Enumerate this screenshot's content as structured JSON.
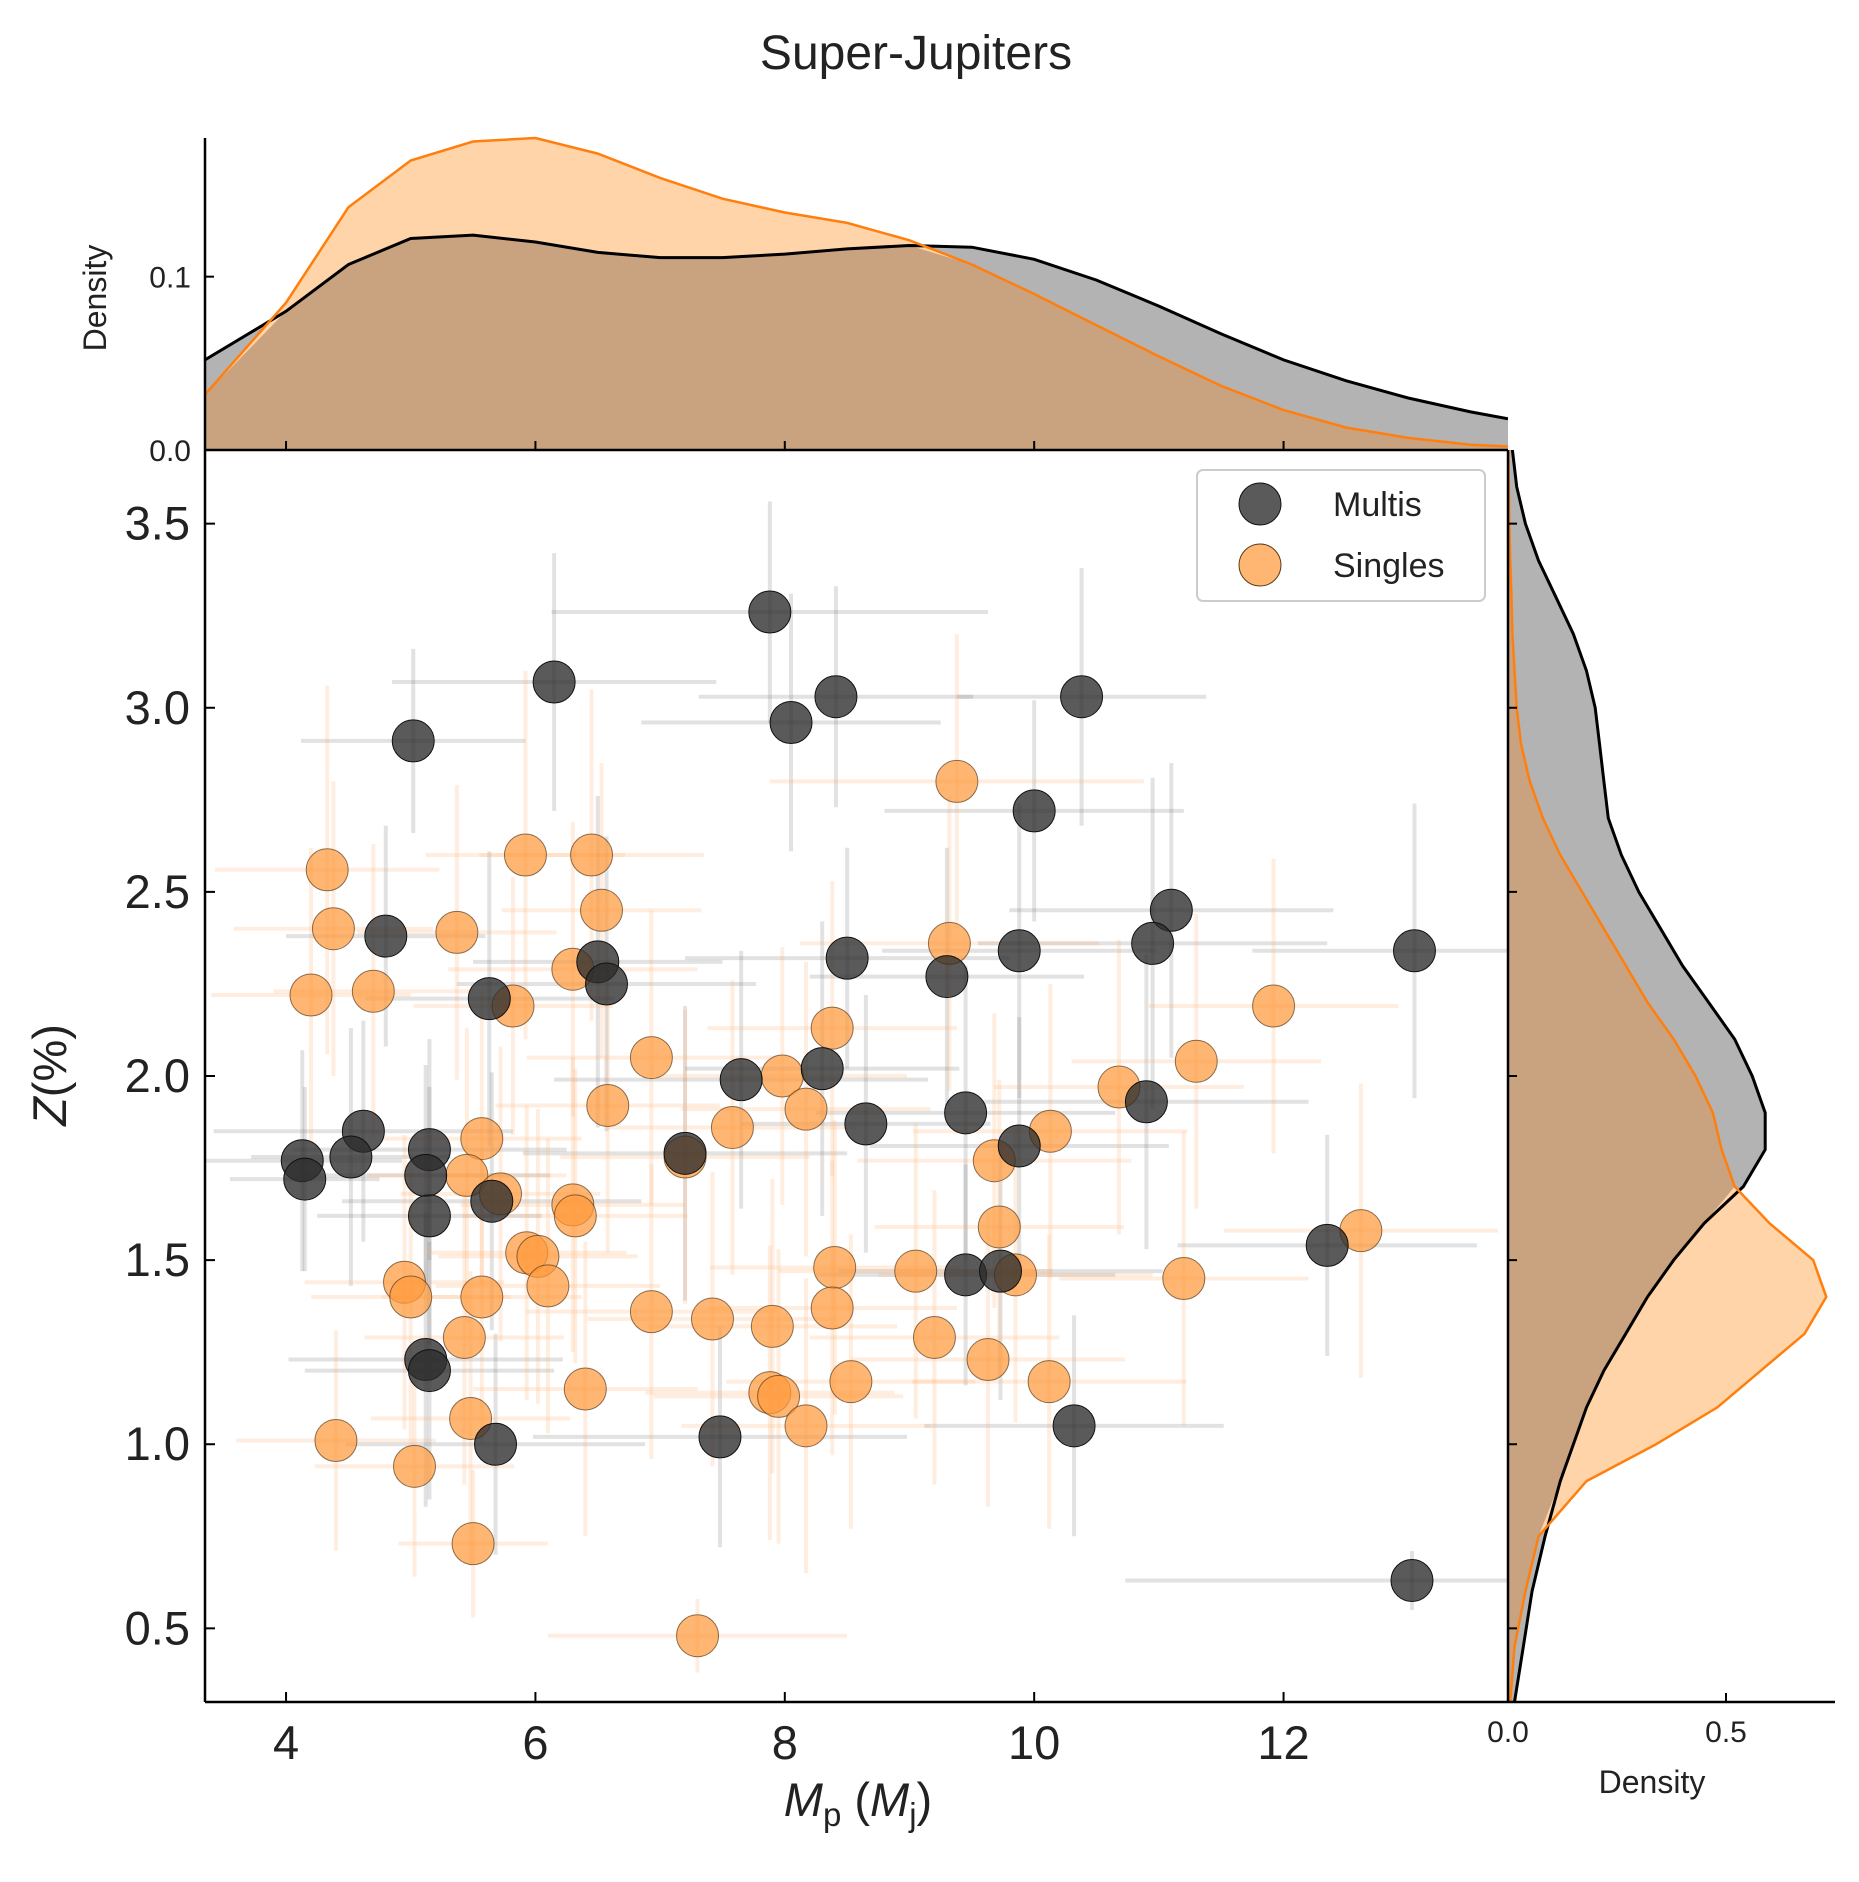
{
  "title": "Super-Jupiters",
  "colors": {
    "multis": "#2b2b2b",
    "singles": "#ff8c1f",
    "multis_fill": "#b3b3b3",
    "singles_fill": "#ffd4a8",
    "overlap_fill": "#c9a27f",
    "singles_line": "#ff7f0e"
  },
  "chart_data": [
    {
      "name": "scatter",
      "type": "scatter",
      "xlabel_main": "M",
      "xlabel_sub": "p",
      "xlabel_open": " (",
      "xlabel_m": "M",
      "xlabel_msub": "j",
      "xlabel_close": ")",
      "ylabel_italic": "Z",
      "ylabel_rest": "(%)",
      "xlim": [
        3.35,
        13.8
      ],
      "ylim": [
        0.3,
        3.7
      ],
      "xticks": [
        4,
        6,
        8,
        10,
        12
      ],
      "yticks": [
        0.5,
        1.0,
        1.5,
        2.0,
        2.5,
        3.0,
        3.5
      ],
      "xtick_labels": [
        "4",
        "6",
        "8",
        "10",
        "12"
      ],
      "ytick_labels": [
        "0.5",
        "1.0",
        "1.5",
        "2.0",
        "2.5",
        "3.0",
        "3.5"
      ],
      "legend": [
        "Multis",
        "Singles"
      ],
      "series": [
        {
          "name": "Multis",
          "points": [
            [
              7.88,
              3.26,
              1.75,
              0.3
            ],
            [
              6.15,
              3.07,
              1.3,
              0.35
            ],
            [
              5.02,
              2.91,
              0.9,
              0.25
            ],
            [
              8.41,
              3.03,
              1.1,
              0.3
            ],
            [
              8.05,
              2.96,
              1.2,
              0.35
            ],
            [
              10.38,
              3.03,
              1.0,
              0.35
            ],
            [
              10.0,
              2.72,
              1.2,
              0.3
            ],
            [
              11.1,
              2.45,
              1.3,
              0.4
            ],
            [
              10.95,
              2.36,
              1.4,
              0.45
            ],
            [
              13.05,
              2.34,
              1.3,
              0.4
            ],
            [
              9.88,
              2.34,
              1.1,
              0.4
            ],
            [
              8.5,
              2.32,
              1.3,
              0.3
            ],
            [
              9.3,
              2.27,
              1.1,
              0.35
            ],
            [
              4.8,
              2.38,
              0.8,
              0.3
            ],
            [
              6.5,
              2.31,
              1.0,
              0.45
            ],
            [
              6.57,
              2.25,
              1.2,
              0.4
            ],
            [
              5.63,
              2.21,
              1.0,
              0.4
            ],
            [
              7.65,
              1.99,
              1.5,
              0.35
            ],
            [
              8.3,
              2.02,
              1.1,
              0.4
            ],
            [
              10.9,
              1.93,
              1.3,
              0.4
            ],
            [
              9.45,
              1.9,
              1.2,
              0.4
            ],
            [
              8.65,
              1.87,
              1.0,
              0.35
            ],
            [
              9.88,
              1.81,
              1.2,
              0.35
            ],
            [
              4.62,
              1.85,
              1.2,
              0.3
            ],
            [
              4.13,
              1.77,
              0.8,
              0.3
            ],
            [
              4.15,
              1.72,
              0.6,
              0.25
            ],
            [
              4.52,
              1.78,
              0.8,
              0.35
            ],
            [
              5.15,
              1.8,
              1.1,
              0.3
            ],
            [
              5.12,
              1.73,
              1.0,
              0.3
            ],
            [
              5.15,
              1.62,
              0.9,
              0.35
            ],
            [
              5.65,
              1.66,
              1.2,
              0.35
            ],
            [
              7.2,
              1.79,
              1.3,
              0.4
            ],
            [
              9.45,
              1.46,
              1.2,
              0.3
            ],
            [
              9.73,
              1.47,
              1.3,
              0.35
            ],
            [
              12.35,
              1.54,
              1.2,
              0.3
            ],
            [
              5.12,
              1.23,
              1.1,
              0.4
            ],
            [
              5.15,
              1.2,
              1.0,
              0.35
            ],
            [
              5.68,
              1.0,
              1.2,
              0.3
            ],
            [
              7.48,
              1.02,
              1.5,
              0.3
            ],
            [
              10.32,
              1.05,
              1.2,
              0.3
            ],
            [
              13.03,
              0.63,
              2.3,
              0.08
            ]
          ]
        },
        {
          "name": "Singles",
          "points": [
            [
              9.38,
              2.8,
              1.5,
              0.4
            ],
            [
              4.33,
              2.56,
              0.9,
              0.5
            ],
            [
              5.92,
              2.6,
              0.8,
              0.5
            ],
            [
              6.45,
              2.6,
              0.9,
              0.45
            ],
            [
              6.53,
              2.45,
              0.8,
              0.4
            ],
            [
              4.38,
              2.4,
              0.8,
              0.4
            ],
            [
              5.37,
              2.39,
              0.8,
              0.4
            ],
            [
              9.32,
              2.36,
              1.2,
              0.4
            ],
            [
              6.3,
              2.29,
              1.0,
              0.4
            ],
            [
              4.2,
              2.22,
              0.8,
              0.4
            ],
            [
              4.7,
              2.23,
              0.8,
              0.4
            ],
            [
              5.82,
              2.19,
              0.8,
              0.35
            ],
            [
              11.92,
              2.19,
              1.0,
              0.4
            ],
            [
              8.38,
              2.13,
              1.0,
              0.4
            ],
            [
              6.93,
              2.05,
              1.0,
              0.4
            ],
            [
              7.98,
              2.0,
              1.0,
              0.35
            ],
            [
              11.3,
              2.04,
              1.0,
              0.4
            ],
            [
              10.68,
              1.97,
              1.0,
              0.4
            ],
            [
              6.58,
              1.92,
              0.9,
              0.4
            ],
            [
              8.17,
              1.91,
              1.0,
              0.4
            ],
            [
              7.58,
              1.86,
              1.0,
              0.4
            ],
            [
              10.13,
              1.85,
              1.1,
              0.4
            ],
            [
              5.57,
              1.83,
              0.8,
              0.4
            ],
            [
              9.68,
              1.77,
              1.1,
              0.4
            ],
            [
              7.2,
              1.78,
              1.0,
              0.4
            ],
            [
              5.45,
              1.73,
              0.8,
              0.4
            ],
            [
              5.72,
              1.68,
              0.8,
              0.4
            ],
            [
              6.3,
              1.65,
              0.9,
              0.4
            ],
            [
              6.32,
              1.62,
              0.9,
              0.4
            ],
            [
              9.72,
              1.59,
              1.0,
              0.4
            ],
            [
              12.62,
              1.58,
              1.1,
              0.4
            ],
            [
              5.93,
              1.52,
              0.8,
              0.4
            ],
            [
              6.02,
              1.51,
              0.8,
              0.4
            ],
            [
              8.4,
              1.48,
              1.0,
              0.4
            ],
            [
              9.05,
              1.47,
              1.1,
              0.4
            ],
            [
              9.85,
              1.46,
              1.1,
              0.4
            ],
            [
              11.2,
              1.45,
              1.0,
              0.4
            ],
            [
              4.95,
              1.44,
              0.8,
              0.4
            ],
            [
              5.0,
              1.4,
              0.8,
              0.4
            ],
            [
              6.1,
              1.43,
              0.9,
              0.4
            ],
            [
              5.57,
              1.4,
              0.8,
              0.4
            ],
            [
              6.93,
              1.36,
              1.0,
              0.4
            ],
            [
              8.38,
              1.37,
              1.0,
              0.4
            ],
            [
              7.42,
              1.34,
              1.0,
              0.4
            ],
            [
              7.9,
              1.32,
              1.0,
              0.4
            ],
            [
              5.43,
              1.29,
              0.8,
              0.4
            ],
            [
              9.2,
              1.29,
              1.0,
              0.4
            ],
            [
              9.63,
              1.23,
              1.1,
              0.4
            ],
            [
              8.53,
              1.17,
              1.0,
              0.4
            ],
            [
              10.12,
              1.17,
              1.1,
              0.4
            ],
            [
              6.4,
              1.15,
              0.9,
              0.4
            ],
            [
              7.88,
              1.14,
              1.0,
              0.4
            ],
            [
              7.95,
              1.13,
              1.0,
              0.4
            ],
            [
              5.48,
              1.07,
              0.8,
              0.4
            ],
            [
              8.17,
              1.05,
              1.0,
              0.4
            ],
            [
              4.4,
              1.01,
              0.8,
              0.3
            ],
            [
              5.03,
              0.94,
              0.8,
              0.3
            ],
            [
              5.5,
              0.73,
              0.6,
              0.2
            ],
            [
              7.3,
              0.48,
              1.2,
              0.1
            ]
          ]
        }
      ]
    },
    {
      "name": "top-marginal",
      "type": "area",
      "ylabel": "Density",
      "ylim": [
        0.0,
        0.18
      ],
      "yticks": [
        0.0,
        0.1
      ],
      "ytick_labels": [
        "0.0",
        "0.1"
      ],
      "x": [
        3.35,
        4.0,
        4.5,
        5.0,
        5.5,
        6.0,
        6.5,
        7.0,
        7.5,
        8.0,
        8.5,
        9.0,
        9.5,
        10.0,
        10.5,
        11.0,
        11.5,
        12.0,
        12.5,
        13.0,
        13.5,
        13.8
      ],
      "series": [
        {
          "name": "Multis",
          "values": [
            0.052,
            0.08,
            0.107,
            0.122,
            0.124,
            0.12,
            0.114,
            0.111,
            0.111,
            0.113,
            0.116,
            0.118,
            0.117,
            0.11,
            0.098,
            0.083,
            0.067,
            0.052,
            0.04,
            0.03,
            0.022,
            0.018
          ]
        },
        {
          "name": "Singles",
          "values": [
            0.032,
            0.085,
            0.14,
            0.167,
            0.178,
            0.18,
            0.171,
            0.157,
            0.145,
            0.137,
            0.131,
            0.121,
            0.107,
            0.09,
            0.072,
            0.054,
            0.037,
            0.023,
            0.013,
            0.007,
            0.003,
            0.002
          ]
        }
      ]
    },
    {
      "name": "right-marginal",
      "type": "area",
      "xlabel": "Density",
      "xlim": [
        0.0,
        0.75
      ],
      "xticks": [
        0.0,
        0.5
      ],
      "xtick_labels": [
        "0.0",
        "0.5"
      ],
      "y": [
        0.3,
        0.45,
        0.6,
        0.75,
        0.9,
        1.0,
        1.1,
        1.2,
        1.3,
        1.4,
        1.5,
        1.6,
        1.7,
        1.8,
        1.9,
        2.0,
        2.1,
        2.2,
        2.3,
        2.4,
        2.5,
        2.6,
        2.7,
        2.8,
        2.9,
        3.0,
        3.1,
        3.2,
        3.3,
        3.4,
        3.5,
        3.6,
        3.7
      ],
      "series": [
        {
          "name": "Multis",
          "values": [
            0.015,
            0.035,
            0.055,
            0.085,
            0.12,
            0.15,
            0.18,
            0.22,
            0.27,
            0.32,
            0.38,
            0.45,
            0.54,
            0.59,
            0.59,
            0.56,
            0.52,
            0.46,
            0.4,
            0.35,
            0.3,
            0.26,
            0.23,
            0.22,
            0.21,
            0.2,
            0.18,
            0.15,
            0.11,
            0.07,
            0.04,
            0.02,
            0.01
          ]
        },
        {
          "name": "Singles",
          "values": [
            0.005,
            0.015,
            0.04,
            0.07,
            0.18,
            0.34,
            0.48,
            0.58,
            0.68,
            0.73,
            0.7,
            0.6,
            0.52,
            0.49,
            0.47,
            0.43,
            0.38,
            0.32,
            0.27,
            0.22,
            0.17,
            0.12,
            0.08,
            0.05,
            0.03,
            0.02,
            0.015,
            0.01,
            0.008,
            0.005,
            0.003,
            0.002,
            0.001
          ]
        }
      ]
    }
  ]
}
